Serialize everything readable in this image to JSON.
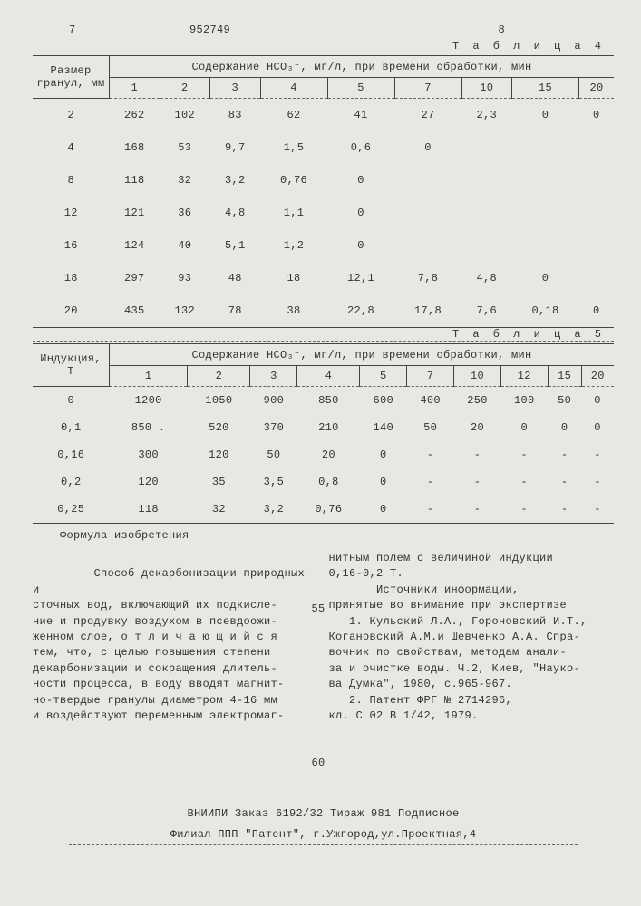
{
  "doc_number": "952749",
  "page_left": "7",
  "page_right": "8",
  "table4": {
    "label": "Т а б л и ц а  4",
    "row_header": "Размер гранул, мм",
    "span_header": "Содержание HCO₃⁻, мг/л, при времени обработки, мин",
    "cols": [
      "1",
      "2",
      "3",
      "4",
      "5",
      "7",
      "10",
      "15",
      "20"
    ],
    "rows": [
      {
        "k": "2",
        "v": [
          "262",
          "102",
          "83",
          "62",
          "41",
          "27",
          "2,3",
          "0",
          "0"
        ]
      },
      {
        "k": "4",
        "v": [
          "168",
          "53",
          "9,7",
          "1,5",
          "0,6",
          "0",
          "",
          "",
          ""
        ]
      },
      {
        "k": "8",
        "v": [
          "118",
          "32",
          "3,2",
          "0,76",
          "0",
          "",
          "",
          "",
          ""
        ]
      },
      {
        "k": "12",
        "v": [
          "121",
          "36",
          "4,8",
          "1,1",
          "0",
          "",
          "",
          "",
          ""
        ]
      },
      {
        "k": "16",
        "v": [
          "124",
          "40",
          "5,1",
          "1,2",
          "0",
          "",
          "",
          "",
          ""
        ]
      },
      {
        "k": "18",
        "v": [
          "297",
          "93",
          "48",
          "18",
          "12,1",
          "7,8",
          "4,8",
          "0",
          ""
        ]
      },
      {
        "k": "20",
        "v": [
          "435",
          "132",
          "78",
          "38",
          "22,8",
          "17,8",
          "7,6",
          "0,18",
          "0"
        ]
      }
    ]
  },
  "table5": {
    "label": "Т а б л и ц а  5",
    "row_header": "Индукция, Т",
    "span_header": "Содержание HCO₃⁻, мг/л, при времени обработки, мин",
    "cols": [
      "1",
      "2",
      "3",
      "4",
      "5",
      "7",
      "10",
      "12",
      "15",
      "20"
    ],
    "rows": [
      {
        "k": "0",
        "v": [
          "1200",
          "1050",
          "900",
          "850",
          "600",
          "400",
          "250",
          "100",
          "50",
          "0"
        ]
      },
      {
        "k": "0,1",
        "v": [
          "850 .",
          "520",
          "370",
          "210",
          "140",
          "50",
          "20",
          "0",
          "0",
          "0"
        ]
      },
      {
        "k": "0,16",
        "v": [
          "300",
          "120",
          "50",
          "20",
          "0",
          "-",
          "-",
          "-",
          "-",
          "-"
        ]
      },
      {
        "k": "0,2",
        "v": [
          "120",
          "35",
          "3,5",
          "0,8",
          "0",
          "-",
          "-",
          "-",
          "-",
          "-"
        ]
      },
      {
        "k": "0,25",
        "v": [
          "118",
          "32",
          "3,2",
          "0,76",
          "0",
          "-",
          "-",
          "-",
          "-",
          "-"
        ]
      }
    ]
  },
  "formula_title": "Формула изобретения",
  "col_left": "   Способ декарбонизации природных и\nсточных вод, включающий их подкисле-\nние и продувку воздухом в псевдоожи-\nженном слое, о т л и ч а ю щ и й с я\nтем, что, с целью повышения степени\nдекарбонизации и сокращения длитель-\nности процесса, в воду вводят магнит-\nно-твердые гранулы диаметром 4-16 мм\nи воздействуют переменным электромаг-",
  "col_left_n1": "55",
  "col_left_n2": "60",
  "col_right": "нитным полем с величиной индукции\n0,16-0,2 Т.\n       Источники информации,\nпринятые во внимание при экспертизе\n   1. Кульский Л.А., Гороновский И.Т.,\nКогановский А.М.и Шевченко А.А. Спра-\nвочник по свойствам, методам анали-\nза и очистке воды. Ч.2, Киев, \"Науко-\nва Думка\", 1980, с.965-967.\n   2. Патент ФРГ № 2714296,\nкл. С 02 В 1/42, 1979.",
  "footer1": "ВНИИПИ  Заказ 6192/32   Тираж 981   Подписное",
  "footer2": "Филиал ППП \"Патент\", г.Ужгород,ул.Проектная,4"
}
